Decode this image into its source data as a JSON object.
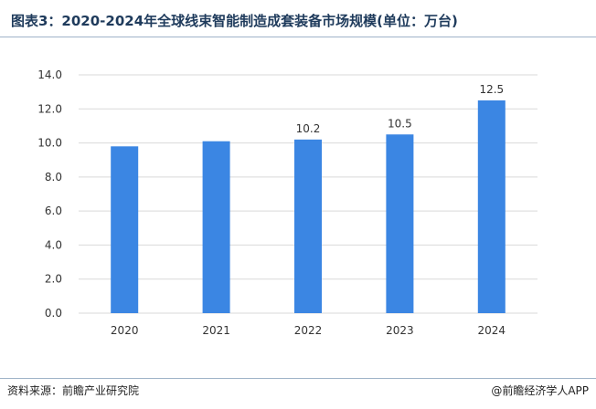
{
  "header": {
    "title": "图表3：2020-2024年全球线束智能制造成套装备市场规模(单位：万台)"
  },
  "footer": {
    "source": "资料来源：前瞻产业研究院",
    "brand": "@前瞻经济学人APP"
  },
  "chart_data": {
    "type": "bar",
    "categories": [
      "2020",
      "2021",
      "2022",
      "2023",
      "2024"
    ],
    "values": [
      9.8,
      10.1,
      10.2,
      10.5,
      12.5
    ],
    "data_labels": [
      "",
      "",
      "10.2",
      "10.5",
      "12.5"
    ],
    "title": "图表3：2020-2024年全球线束智能制造成套装备市场规模(单位：万台)",
    "xlabel": "",
    "ylabel": "",
    "ylim": [
      0,
      14
    ],
    "yticks": [
      "0.0",
      "2.0",
      "4.0",
      "6.0",
      "8.0",
      "10.0",
      "12.0",
      "14.0"
    ],
    "grid": true,
    "bar_color": "#3b86e3",
    "grid_color": "#d9d9d9"
  }
}
